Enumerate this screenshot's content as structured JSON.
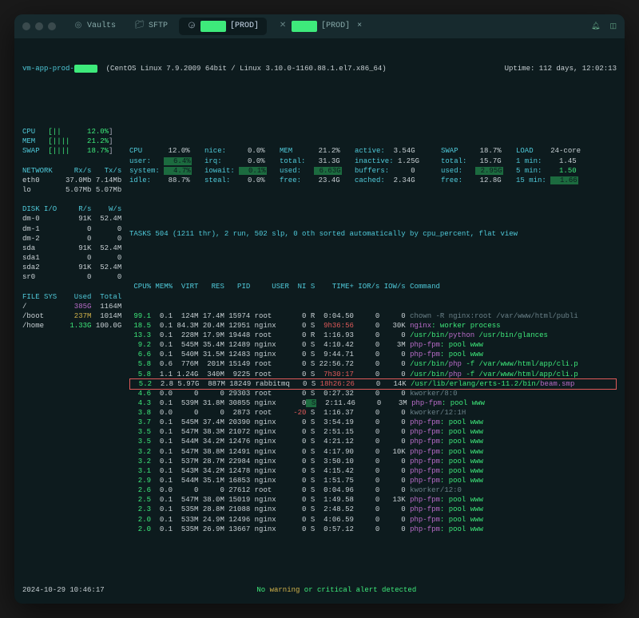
{
  "titlebar": {
    "tabs": [
      {
        "icon": "shield",
        "label": "Vaults"
      },
      {
        "icon": "folder",
        "label": "SFTP"
      },
      {
        "icon": "ubuntu",
        "label_prefix": "",
        "redacted": true,
        "label_suffix": "[PROD]",
        "active": true
      },
      {
        "icon": "tmux",
        "redacted": true,
        "label_suffix": "[PROD]",
        "closable": true
      }
    ]
  },
  "header": {
    "hostname_prefix": "vm-app-prod-",
    "os_string": "(CentOS Linux 7.9.2009 64bit / Linux 3.10.0-1160.88.1.el7.x86_64)",
    "uptime": "Uptime: 112 days, 12:02:13"
  },
  "left": {
    "cpu": {
      "label": "CPU",
      "bar": "[||",
      "pct": "12.0%"
    },
    "mem": {
      "label": "MEM",
      "bar": "[||||",
      "pct": "21.2%"
    },
    "swap": {
      "label": "SWAP",
      "bar": "[||||",
      "pct": "18.7%"
    },
    "network": {
      "title": "NETWORK",
      "cols": [
        "Rx/s",
        "Tx/s"
      ],
      "rows": [
        [
          "eth0",
          "37.0Mb",
          "7.14Mb"
        ],
        [
          "lo",
          "5.07Mb",
          "5.07Mb"
        ]
      ]
    },
    "diskio": {
      "title": "DISK I/O",
      "cols": [
        "R/s",
        "W/s"
      ],
      "rows": [
        [
          "dm-0",
          "91K",
          "52.4M"
        ],
        [
          "dm-1",
          "0",
          "0"
        ],
        [
          "dm-2",
          "0",
          "0"
        ],
        [
          "sda",
          "91K",
          "52.4M"
        ],
        [
          "sda1",
          "0",
          "0"
        ],
        [
          "sda2",
          "91K",
          "52.4M"
        ],
        [
          "sr0",
          "0",
          "0"
        ]
      ]
    },
    "fs": {
      "title": "FILE SYS",
      "cols": [
        "Used",
        "Total"
      ],
      "rows": [
        [
          "/",
          "385G",
          "1164M"
        ],
        [
          "/boot",
          "237M",
          "1014M"
        ],
        [
          "/home",
          "1.33G",
          "100.0G"
        ]
      ]
    }
  },
  "top": {
    "cpu": [
      [
        "CPU",
        "12.0%"
      ],
      [
        "user:",
        "6.4%",
        "hl"
      ],
      [
        "system:",
        "4.7%",
        "hl"
      ],
      [
        "idle:",
        "88.7%"
      ]
    ],
    "cpu2": [
      [
        "nice:",
        "0.0%"
      ],
      [
        "irq:",
        "0.0%"
      ],
      [
        "iowait:",
        "0.1%",
        "hl"
      ],
      [
        "steal:",
        "0.0%"
      ]
    ],
    "mem": [
      [
        "MEM",
        "21.2%"
      ],
      [
        "total:",
        "31.3G"
      ],
      [
        "used:",
        "6.63G",
        "hl"
      ],
      [
        "free:",
        "23.4G"
      ]
    ],
    "mem2": [
      [
        "active:",
        "3.54G"
      ],
      [
        "inactive:",
        "1.25G"
      ],
      [
        "buffers:",
        "0"
      ],
      [
        "cached:",
        "2.34G"
      ]
    ],
    "swap": [
      [
        "SWAP",
        "18.7%"
      ],
      [
        "total:",
        "15.7G"
      ],
      [
        "used:",
        "2.95G",
        "hl"
      ],
      [
        "free:",
        "12.8G"
      ]
    ],
    "load": [
      [
        "LOAD",
        "24-core"
      ],
      [
        "1 min:",
        "1.45"
      ],
      [
        "5 min:",
        "1.50",
        "g"
      ],
      [
        "15 min:",
        "1.66",
        "hl"
      ]
    ]
  },
  "tasks_line": "TASKS 504 (1211 thr), 2 run, 502 slp, 0 oth sorted automatically by cpu_percent, flat view",
  "proc_header": [
    "CPU%",
    "MEM%",
    "VIRT",
    "RES",
    "PID",
    "USER",
    "NI",
    "S",
    "TIME+",
    "IOR/s",
    "IOW/s",
    "Command"
  ],
  "procs": [
    {
      "cpu": "99.1",
      "mem": "0.1",
      "virt": "124M",
      "res": "17.4M",
      "pid": "15974",
      "user": "root",
      "ni": "0",
      "s": "R",
      "time": "0:04.50",
      "ior": "0",
      "iow": "0",
      "cmd": [
        [
          "dim",
          "chown -R nginx:root /var/www/html/publi"
        ]
      ]
    },
    {
      "cpu": "18.5",
      "mem": "0.1",
      "virt": "84.3M",
      "res": "20.4M",
      "pid": "12951",
      "user": "nginx",
      "ni": "0",
      "s": "S",
      "time": "9h36:56",
      "time_cls": "r",
      "ior": "0",
      "iow": "30K",
      "cmd": [
        [
          "m",
          "nginx"
        ],
        [
          "g",
          ": worker process"
        ]
      ]
    },
    {
      "cpu": "13.3",
      "mem": "0.1",
      "virt": "228M",
      "res": "17.9M",
      "pid": "19448",
      "user": "root",
      "ni": "0",
      "s": "R",
      "time": "1:16.93",
      "ior": "0",
      "iow": "0",
      "cmd": [
        [
          "g",
          "/usr/bin/"
        ],
        [
          "m",
          "python"
        ],
        [
          "g",
          " /usr/bin/glances"
        ]
      ]
    },
    {
      "cpu": "9.2",
      "mem": "0.1",
      "virt": "545M",
      "res": "35.4M",
      "pid": "12489",
      "user": "nginx",
      "ni": "0",
      "s": "S",
      "time": "4:10.42",
      "ior": "0",
      "iow": "3M",
      "cmd": [
        [
          "m",
          "php-fpm"
        ],
        [
          "g",
          ": pool www"
        ]
      ]
    },
    {
      "cpu": "6.6",
      "mem": "0.1",
      "virt": "540M",
      "res": "31.5M",
      "pid": "12483",
      "user": "nginx",
      "ni": "0",
      "s": "S",
      "time": "9:44.71",
      "ior": "0",
      "iow": "0",
      "cmd": [
        [
          "m",
          "php-fpm"
        ],
        [
          "g",
          ": pool www"
        ]
      ]
    },
    {
      "cpu": "5.8",
      "mem": "0.6",
      "virt": "776M",
      "res": "201M",
      "pid": "15149",
      "user": "root",
      "ni": "0",
      "s": "S",
      "time": "22:56.72",
      "ior": "0",
      "iow": "0",
      "cmd": [
        [
          "g",
          "/usr/bin/"
        ],
        [
          "m",
          "php"
        ],
        [
          "g",
          " -f /var/www/html/app/cli.p"
        ]
      ]
    },
    {
      "cpu": "5.8",
      "mem": "1.1",
      "virt": "1.24G",
      "res": "340M",
      "pid": "9225",
      "user": "root",
      "ni": "0",
      "s": "S",
      "time": "7h30:17",
      "time_cls": "r",
      "ior": "0",
      "iow": "0",
      "cmd": [
        [
          "g",
          "/usr/bin/"
        ],
        [
          "m",
          "php"
        ],
        [
          "g",
          " -f /var/www/html/app/cli.p"
        ]
      ]
    },
    {
      "cpu": "5.2",
      "mem": "2.8",
      "virt": "5.97G",
      "res": "887M",
      "pid": "18249",
      "user": "rabbitmq",
      "ni": "0",
      "s": "S",
      "time": "18h26:26",
      "time_cls": "r",
      "ior": "0",
      "iow": "14K",
      "cmd": [
        [
          "g",
          "/usr/lib/erlang/erts-11.2/bin/"
        ],
        [
          "m",
          "beam.smp"
        ]
      ],
      "boxed": true
    },
    {
      "cpu": "4.6",
      "mem": "0.0",
      "virt": "0",
      "res": "0",
      "pid": "29303",
      "user": "root",
      "ni": "0",
      "s": "S",
      "time": "0:27.32",
      "ior": "0",
      "iow": "0",
      "cmd": [
        [
          "dim",
          "kworker/8:0"
        ]
      ]
    },
    {
      "cpu": "4.3",
      "mem": "0.1",
      "virt": "539M",
      "res": "31.8M",
      "pid": "30855",
      "user": "nginx",
      "ni": "0",
      "s": "S",
      "s_cls": "hl",
      "time": "2:11.46",
      "ior": "0",
      "iow": "3M",
      "cmd": [
        [
          "m",
          "php-fpm"
        ],
        [
          "g",
          ": pool www"
        ]
      ]
    },
    {
      "cpu": "3.8",
      "mem": "0.0",
      "virt": "0",
      "res": "0",
      "pid": "2873",
      "user": "root",
      "ni": "-20",
      "ni_cls": "r",
      "s": "S",
      "time": "1:16.37",
      "ior": "0",
      "iow": "0",
      "cmd": [
        [
          "dim",
          "kworker/12:1H"
        ]
      ]
    },
    {
      "cpu": "3.7",
      "mem": "0.1",
      "virt": "545M",
      "res": "37.4M",
      "pid": "20390",
      "user": "nginx",
      "ni": "0",
      "s": "S",
      "time": "3:54.19",
      "ior": "0",
      "iow": "0",
      "cmd": [
        [
          "m",
          "php-fpm"
        ],
        [
          "g",
          ": pool www"
        ]
      ]
    },
    {
      "cpu": "3.5",
      "mem": "0.1",
      "virt": "547M",
      "res": "38.3M",
      "pid": "21072",
      "user": "nginx",
      "ni": "0",
      "s": "S",
      "time": "2:51.15",
      "ior": "0",
      "iow": "0",
      "cmd": [
        [
          "m",
          "php-fpm"
        ],
        [
          "g",
          ": pool www"
        ]
      ]
    },
    {
      "cpu": "3.5",
      "mem": "0.1",
      "virt": "544M",
      "res": "34.2M",
      "pid": "12476",
      "user": "nginx",
      "ni": "0",
      "s": "S",
      "time": "4:21.12",
      "ior": "0",
      "iow": "0",
      "cmd": [
        [
          "m",
          "php-fpm"
        ],
        [
          "g",
          ": pool www"
        ]
      ]
    },
    {
      "cpu": "3.2",
      "mem": "0.1",
      "virt": "547M",
      "res": "38.8M",
      "pid": "12491",
      "user": "nginx",
      "ni": "0",
      "s": "S",
      "time": "4:17.90",
      "ior": "0",
      "iow": "10K",
      "cmd": [
        [
          "m",
          "php-fpm"
        ],
        [
          "g",
          ": pool www"
        ]
      ]
    },
    {
      "cpu": "3.2",
      "mem": "0.1",
      "virt": "537M",
      "res": "28.7M",
      "pid": "22984",
      "user": "nginx",
      "ni": "0",
      "s": "S",
      "time": "3:50.10",
      "ior": "0",
      "iow": "0",
      "cmd": [
        [
          "m",
          "php-fpm"
        ],
        [
          "g",
          ": pool www"
        ]
      ]
    },
    {
      "cpu": "3.1",
      "mem": "0.1",
      "virt": "543M",
      "res": "34.2M",
      "pid": "12478",
      "user": "nginx",
      "ni": "0",
      "s": "S",
      "time": "4:15.42",
      "ior": "0",
      "iow": "0",
      "cmd": [
        [
          "m",
          "php-fpm"
        ],
        [
          "g",
          ": pool www"
        ]
      ]
    },
    {
      "cpu": "2.9",
      "mem": "0.1",
      "virt": "544M",
      "res": "35.1M",
      "pid": "16853",
      "user": "nginx",
      "ni": "0",
      "s": "S",
      "time": "1:51.75",
      "ior": "0",
      "iow": "0",
      "cmd": [
        [
          "m",
          "php-fpm"
        ],
        [
          "g",
          ": pool www"
        ]
      ]
    },
    {
      "cpu": "2.6",
      "mem": "0.0",
      "virt": "0",
      "res": "0",
      "pid": "27612",
      "user": "root",
      "ni": "0",
      "s": "S",
      "time": "0:04.96",
      "ior": "0",
      "iow": "0",
      "cmd": [
        [
          "dim",
          "kworker/12:0"
        ]
      ]
    },
    {
      "cpu": "2.5",
      "mem": "0.1",
      "virt": "547M",
      "res": "38.0M",
      "pid": "15019",
      "user": "nginx",
      "ni": "0",
      "s": "S",
      "time": "1:49.58",
      "ior": "0",
      "iow": "13K",
      "cmd": [
        [
          "m",
          "php-fpm"
        ],
        [
          "g",
          ": pool www"
        ]
      ]
    },
    {
      "cpu": "2.3",
      "mem": "0.1",
      "virt": "535M",
      "res": "28.8M",
      "pid": "21088",
      "user": "nginx",
      "ni": "0",
      "s": "S",
      "time": "2:48.52",
      "ior": "0",
      "iow": "0",
      "cmd": [
        [
          "m",
          "php-fpm"
        ],
        [
          "g",
          ": pool www"
        ]
      ]
    },
    {
      "cpu": "2.0",
      "mem": "0.1",
      "virt": "533M",
      "res": "24.9M",
      "pid": "12496",
      "user": "nginx",
      "ni": "0",
      "s": "S",
      "time": "4:06.59",
      "ior": "0",
      "iow": "0",
      "cmd": [
        [
          "m",
          "php-fpm"
        ],
        [
          "g",
          ": pool www"
        ]
      ]
    },
    {
      "cpu": "2.0",
      "mem": "0.1",
      "virt": "535M",
      "res": "26.9M",
      "pid": "13667",
      "user": "nginx",
      "ni": "0",
      "s": "S",
      "time": "0:57.12",
      "ior": "0",
      "iow": "0",
      "cmd": [
        [
          "m",
          "php-fpm"
        ],
        [
          "g",
          ": pool www"
        ]
      ]
    }
  ],
  "footer": {
    "timestamp": "2024-10-29 10:46:17",
    "alert_pre": "No ",
    "alert_word": "warning",
    "alert_post": " or critical alert detected"
  }
}
